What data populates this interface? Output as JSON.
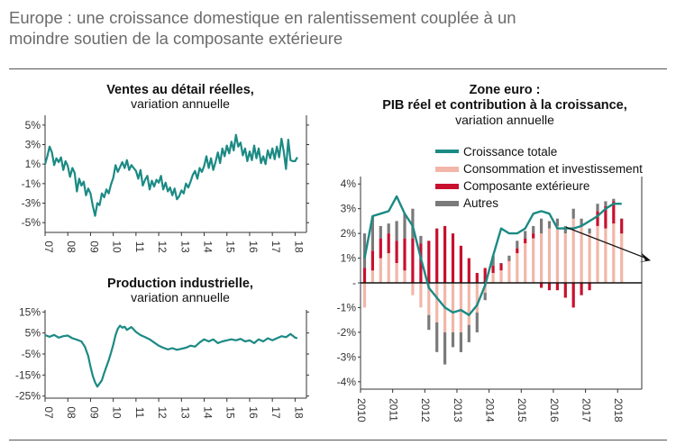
{
  "page": {
    "title_line1": "Europe : une croissance domestique en ralentissement couplée à un",
    "title_line2": "moindre soutien de la composante extérieure"
  },
  "colors": {
    "teal": "#1b8a84",
    "pink": "#f2b6a8",
    "red": "#c8102e",
    "gray": "#7a7a7a"
  },
  "chart_data": [
    {
      "type": "line",
      "title": "Ventes au détail réelles,",
      "subtitle": "variation annuelle",
      "ylim": [
        -6,
        6
      ],
      "yticks": [
        5,
        3,
        1,
        -1,
        -3,
        -5
      ],
      "ytick_labels": [
        "5%",
        "3%",
        "1%",
        "-1%",
        "-3%",
        "-5%"
      ],
      "xlim": [
        2007,
        2018.5
      ],
      "xticks": [
        2007,
        2008,
        2009,
        2010,
        2011,
        2012,
        2013,
        2014,
        2015,
        2016,
        2017,
        2018
      ],
      "xtick_labels": [
        "07",
        "08",
        "09",
        "10",
        "11",
        "12",
        "13",
        "14",
        "15",
        "16",
        "17",
        "18"
      ],
      "series": [
        {
          "name": "Ventes au détail réelles",
          "x": [
            2007.0,
            2007.1,
            2007.2,
            2007.3,
            2007.4,
            2007.5,
            2007.6,
            2007.7,
            2007.8,
            2007.9,
            2008.0,
            2008.1,
            2008.2,
            2008.3,
            2008.4,
            2008.5,
            2008.6,
            2008.7,
            2008.8,
            2008.9,
            2009.0,
            2009.1,
            2009.2,
            2009.3,
            2009.4,
            2009.5,
            2009.6,
            2009.7,
            2009.8,
            2009.9,
            2010.0,
            2010.1,
            2010.2,
            2010.3,
            2010.4,
            2010.5,
            2010.6,
            2010.7,
            2010.8,
            2010.9,
            2011.0,
            2011.1,
            2011.2,
            2011.3,
            2011.4,
            2011.5,
            2011.6,
            2011.7,
            2011.8,
            2011.9,
            2012.0,
            2012.1,
            2012.2,
            2012.3,
            2012.4,
            2012.5,
            2012.6,
            2012.7,
            2012.8,
            2012.9,
            2013.0,
            2013.1,
            2013.2,
            2013.3,
            2013.4,
            2013.5,
            2013.6,
            2013.7,
            2013.8,
            2013.9,
            2014.0,
            2014.1,
            2014.2,
            2014.3,
            2014.4,
            2014.5,
            2014.6,
            2014.7,
            2014.8,
            2014.9,
            2015.0,
            2015.1,
            2015.2,
            2015.3,
            2015.4,
            2015.5,
            2015.6,
            2015.7,
            2015.8,
            2015.9,
            2016.0,
            2016.1,
            2016.2,
            2016.3,
            2016.4,
            2016.5,
            2016.6,
            2016.7,
            2016.8,
            2016.9,
            2017.0,
            2017.1,
            2017.2,
            2017.3,
            2017.4,
            2017.5,
            2017.6,
            2017.7,
            2017.8,
            2017.9,
            2018.0,
            2018.1
          ],
          "values": [
            1.0,
            1.8,
            2.8,
            2.2,
            0.9,
            1.6,
            1.2,
            1.7,
            0.4,
            1.3,
            0.8,
            -0.3,
            0.6,
            0.1,
            -1.8,
            -0.5,
            -1.2,
            -0.8,
            -2.2,
            -1.5,
            -2.0,
            -3.3,
            -4.3,
            -3.0,
            -3.2,
            -2.0,
            -2.4,
            -1.6,
            -2.0,
            -1.1,
            -0.4,
            0.9,
            0.2,
            0.7,
            1.2,
            0.6,
            1.4,
            0.4,
            0.9,
            0.6,
            0.3,
            -0.5,
            0.4,
            -1.2,
            -0.6,
            -0.2,
            -1.6,
            -0.7,
            -1.3,
            -0.6,
            -0.9,
            -0.2,
            -1.6,
            -0.9,
            -1.8,
            -1.4,
            -2.2,
            -1.5,
            -2.6,
            -2.3,
            -1.7,
            -2.0,
            -1.0,
            -1.4,
            -0.8,
            -0.1,
            0.3,
            -0.5,
            0.6,
            0.2,
            0.8,
            1.8,
            0.6,
            1.6,
            0.4,
            1.2,
            2.2,
            1.1,
            2.6,
            1.8,
            2.9,
            2.1,
            3.3,
            2.4,
            4.0,
            2.8,
            3.2,
            1.9,
            2.6,
            1.3,
            2.3,
            1.4,
            2.9,
            1.6,
            2.6,
            1.1,
            1.8,
            1.0,
            2.4,
            1.6,
            2.6,
            1.5,
            2.8,
            1.7,
            3.6,
            2.3,
            0.5,
            3.5,
            1.4,
            1.3,
            1.3,
            1.7
          ]
        }
      ]
    },
    {
      "type": "line",
      "title": "Production industrielle,",
      "subtitle": "variation annuelle",
      "ylim": [
        -26,
        16
      ],
      "yticks": [
        15,
        5,
        -5,
        -15,
        -25
      ],
      "ytick_labels": [
        "15%",
        "5%",
        "-5%",
        "-15%",
        "-25%"
      ],
      "xlim": [
        2007,
        2018.5
      ],
      "xticks": [
        2007,
        2008,
        2009,
        2010,
        2011,
        2012,
        2013,
        2014,
        2015,
        2016,
        2017,
        2018
      ],
      "xtick_labels": [
        "07",
        "08",
        "09",
        "10",
        "11",
        "12",
        "13",
        "14",
        "15",
        "16",
        "17",
        "18"
      ],
      "series": [
        {
          "name": "Production industrielle",
          "x": [
            2007.0,
            2007.2,
            2007.4,
            2007.6,
            2007.8,
            2008.0,
            2008.2,
            2008.4,
            2008.6,
            2008.75,
            2008.9,
            2009.0,
            2009.1,
            2009.2,
            2009.3,
            2009.4,
            2009.5,
            2009.6,
            2009.7,
            2009.8,
            2009.9,
            2010.0,
            2010.1,
            2010.2,
            2010.3,
            2010.4,
            2010.5,
            2010.6,
            2010.8,
            2011.0,
            2011.2,
            2011.4,
            2011.6,
            2011.8,
            2012.0,
            2012.2,
            2012.4,
            2012.6,
            2012.8,
            2013.0,
            2013.2,
            2013.4,
            2013.6,
            2013.8,
            2014.0,
            2014.2,
            2014.4,
            2014.6,
            2014.8,
            2015.0,
            2015.2,
            2015.4,
            2015.6,
            2015.8,
            2016.0,
            2016.2,
            2016.4,
            2016.6,
            2016.8,
            2017.0,
            2017.2,
            2017.4,
            2017.6,
            2017.8,
            2018.0,
            2018.1
          ],
          "values": [
            4.0,
            3.2,
            4.1,
            2.8,
            3.5,
            3.8,
            2.5,
            1.8,
            1.0,
            -1.5,
            -6.0,
            -11.0,
            -15.5,
            -18.5,
            -20.5,
            -19.0,
            -17.5,
            -14.0,
            -11.0,
            -8.0,
            -4.5,
            -0.5,
            4.0,
            7.0,
            8.5,
            7.5,
            8.0,
            6.5,
            7.8,
            5.5,
            4.0,
            3.0,
            2.0,
            0.5,
            -1.0,
            -2.0,
            -2.8,
            -2.2,
            -3.0,
            -2.5,
            -2.0,
            -1.0,
            -1.5,
            0.5,
            2.0,
            1.0,
            2.0,
            0.2,
            1.0,
            1.5,
            2.0,
            1.5,
            2.2,
            1.0,
            1.5,
            0.2,
            2.0,
            1.0,
            2.5,
            1.5,
            2.5,
            3.5,
            3.0,
            4.5,
            2.8,
            2.5
          ]
        }
      ]
    },
    {
      "type": "bar",
      "title_line1": "Zone euro :",
      "title_line2": "PIB réel et contribution à la croissance,",
      "subtitle": "variation annuelle",
      "ylim": [
        -4.3,
        4.3
      ],
      "yticks": [
        4,
        3,
        2,
        1,
        0,
        -1,
        -2,
        -3,
        -4
      ],
      "ytick_labels": [
        "4%",
        "3%",
        "2%",
        "1%",
        "-",
        "-1%",
        "-2%",
        "-3%",
        "-4%"
      ],
      "xlim": [
        2010,
        2018.75
      ],
      "xticks": [
        2010,
        2011,
        2012,
        2013,
        2014,
        2015,
        2016,
        2017,
        2018
      ],
      "xtick_labels": [
        "2010",
        "2011",
        "2012",
        "2013",
        "2014",
        "2015",
        "2016",
        "2017",
        "2018"
      ],
      "legend": [
        "Croissance totale",
        "Consommation et investissement",
        "Composante extérieure",
        "Autres"
      ],
      "legend_position": "top",
      "quarters": [
        "2010Q1",
        "2010Q2",
        "2010Q3",
        "2010Q4",
        "2011Q1",
        "2011Q2",
        "2011Q3",
        "2011Q4",
        "2012Q1",
        "2012Q2",
        "2012Q3",
        "2012Q4",
        "2013Q1",
        "2013Q2",
        "2013Q3",
        "2013Q4",
        "2014Q1",
        "2014Q2",
        "2014Q3",
        "2014Q4",
        "2015Q1",
        "2015Q2",
        "2015Q3",
        "2015Q4",
        "2016Q1",
        "2016Q2",
        "2016Q3",
        "2016Q4",
        "2017Q1",
        "2017Q2",
        "2017Q3",
        "2017Q4",
        "2018Q1"
      ],
      "x": [
        2010.125,
        2010.375,
        2010.625,
        2010.875,
        2011.125,
        2011.375,
        2011.625,
        2011.875,
        2012.125,
        2012.375,
        2012.625,
        2012.875,
        2013.125,
        2013.375,
        2013.625,
        2013.875,
        2014.125,
        2014.375,
        2014.625,
        2014.875,
        2015.125,
        2015.375,
        2015.625,
        2015.875,
        2016.125,
        2016.375,
        2016.625,
        2016.875,
        2017.125,
        2017.375,
        2017.625,
        2017.875,
        2018.125
      ],
      "series": [
        {
          "name": "Consommation et investissement",
          "values": [
            -1.0,
            0.5,
            1.0,
            1.2,
            0.8,
            0.5,
            -0.5,
            -1.0,
            -1.3,
            -1.6,
            -2.0,
            -2.0,
            -2.0,
            -1.7,
            -1.2,
            -0.4,
            0.4,
            0.5,
            0.9,
            1.2,
            1.6,
            1.8,
            2.0,
            2.2,
            2.3,
            2.0,
            2.6,
            2.3,
            2.0,
            2.3,
            2.2,
            2.4,
            2.0
          ]
        },
        {
          "name": "Composante extérieure",
          "values": [
            0.6,
            0.8,
            0.8,
            0.8,
            0.9,
            1.3,
            1.8,
            1.6,
            1.7,
            2.2,
            2.3,
            2.0,
            1.5,
            1.0,
            0.4,
            0.6,
            0.3,
            0.3,
            0.0,
            0.2,
            0.2,
            0.2,
            -0.2,
            -0.3,
            -0.3,
            -0.6,
            -1.0,
            -0.5,
            -0.3,
            0.6,
            0.9,
            0.9,
            0.6
          ]
        },
        {
          "name": "Autres",
          "values": [
            1.4,
            1.4,
            0.5,
            0.4,
            0.8,
            1.0,
            1.2,
            0.3,
            -0.6,
            -1.2,
            -1.3,
            -0.6,
            -0.8,
            -0.7,
            -0.8,
            -0.3,
            0.4,
            0.0,
            0.2,
            0.3,
            0.3,
            0.3,
            0.6,
            0.3,
            0.3,
            0.3,
            0.4,
            0.3,
            0.2,
            0.3,
            0.2,
            0.1,
            0.0
          ]
        },
        {
          "name": "Croissance totale",
          "values": [
            1.0,
            2.7,
            2.8,
            2.9,
            3.5,
            2.8,
            2.3,
            1.0,
            -0.2,
            -0.6,
            -1.0,
            -1.2,
            -1.1,
            -1.3,
            -0.9,
            -0.1,
            1.1,
            2.2,
            2.0,
            2.0,
            2.2,
            2.8,
            2.9,
            2.8,
            2.2,
            2.2,
            2.2,
            2.3,
            2.5,
            2.7,
            3.0,
            3.2,
            3.2
          ]
        }
      ],
      "annotation": "downward trend arrow from 2016Q2 to beyond 2018"
    }
  ]
}
